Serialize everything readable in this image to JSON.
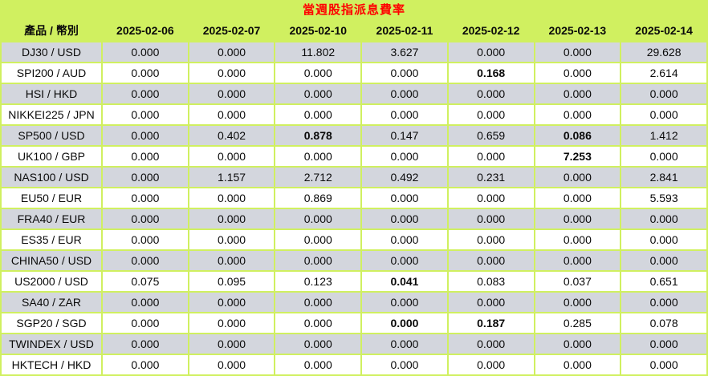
{
  "title": "當週股指派息費率",
  "colors": {
    "background_green": "#d0f060",
    "row_gray": "#d3d6dd",
    "row_white": "#ffffff",
    "title_red": "#ff0000",
    "text_black": "#0a0a0a"
  },
  "chart_data": {
    "type": "table",
    "title": "當週股指派息費率",
    "columns": [
      "產品 / 幣別",
      "2025-02-06",
      "2025-02-07",
      "2025-02-10",
      "2025-02-11",
      "2025-02-12",
      "2025-02-13",
      "2025-02-14"
    ],
    "rows": [
      {
        "product": "DJ30 / USD",
        "values": [
          "0.000",
          "0.000",
          "11.802",
          "3.627",
          "0.000",
          "0.000",
          "29.628"
        ],
        "bold": []
      },
      {
        "product": "SPI200 / AUD",
        "values": [
          "0.000",
          "0.000",
          "0.000",
          "0.000",
          "0.168",
          "0.000",
          "2.614"
        ],
        "bold": [
          4
        ]
      },
      {
        "product": "HSI / HKD",
        "values": [
          "0.000",
          "0.000",
          "0.000",
          "0.000",
          "0.000",
          "0.000",
          "0.000"
        ],
        "bold": []
      },
      {
        "product": "NIKKEI225 / JPN",
        "values": [
          "0.000",
          "0.000",
          "0.000",
          "0.000",
          "0.000",
          "0.000",
          "0.000"
        ],
        "bold": []
      },
      {
        "product": "SP500 / USD",
        "values": [
          "0.000",
          "0.402",
          "0.878",
          "0.147",
          "0.659",
          "0.086",
          "1.412"
        ],
        "bold": [
          2,
          5
        ]
      },
      {
        "product": "UK100 / GBP",
        "values": [
          "0.000",
          "0.000",
          "0.000",
          "0.000",
          "0.000",
          "7.253",
          "0.000"
        ],
        "bold": [
          5
        ]
      },
      {
        "product": "NAS100 / USD",
        "values": [
          "0.000",
          "1.157",
          "2.712",
          "0.492",
          "0.231",
          "0.000",
          "2.841"
        ],
        "bold": []
      },
      {
        "product": "EU50 / EUR",
        "values": [
          "0.000",
          "0.000",
          "0.869",
          "0.000",
          "0.000",
          "0.000",
          "5.593"
        ],
        "bold": []
      },
      {
        "product": "FRA40 / EUR",
        "values": [
          "0.000",
          "0.000",
          "0.000",
          "0.000",
          "0.000",
          "0.000",
          "0.000"
        ],
        "bold": []
      },
      {
        "product": "ES35 / EUR",
        "values": [
          "0.000",
          "0.000",
          "0.000",
          "0.000",
          "0.000",
          "0.000",
          "0.000"
        ],
        "bold": []
      },
      {
        "product": "CHINA50 / USD",
        "values": [
          "0.000",
          "0.000",
          "0.000",
          "0.000",
          "0.000",
          "0.000",
          "0.000"
        ],
        "bold": []
      },
      {
        "product": "US2000 / USD",
        "values": [
          "0.075",
          "0.095",
          "0.123",
          "0.041",
          "0.083",
          "0.037",
          "0.651"
        ],
        "bold": [
          3
        ]
      },
      {
        "product": "SA40 / ZAR",
        "values": [
          "0.000",
          "0.000",
          "0.000",
          "0.000",
          "0.000",
          "0.000",
          "0.000"
        ],
        "bold": []
      },
      {
        "product": "SGP20 / SGD",
        "values": [
          "0.000",
          "0.000",
          "0.000",
          "0.000",
          "0.187",
          "0.285",
          "0.078"
        ],
        "bold": [
          3,
          4
        ]
      },
      {
        "product": "TWINDEX / USD",
        "values": [
          "0.000",
          "0.000",
          "0.000",
          "0.000",
          "0.000",
          "0.000",
          "0.000"
        ],
        "bold": []
      },
      {
        "product": "HKTECH / HKD",
        "values": [
          "0.000",
          "0.000",
          "0.000",
          "0.000",
          "0.000",
          "0.000",
          "0.000"
        ],
        "bold": []
      }
    ]
  }
}
